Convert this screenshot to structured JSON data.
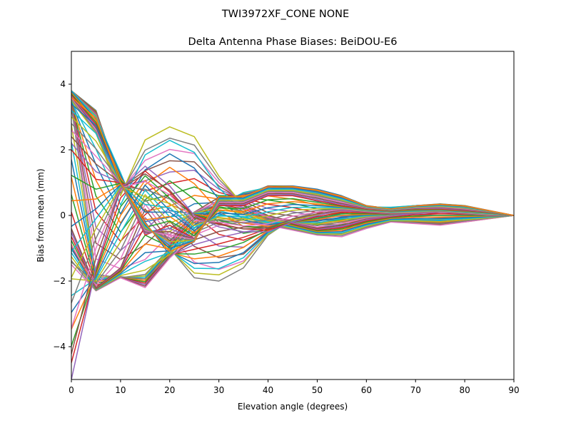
{
  "chart_data": {
    "type": "line",
    "suptitle": "TWI3972XF_CONE  NONE",
    "title": "Delta Antenna Phase Biases: BeiDOU-E6",
    "xlabel": "Elevation angle (degrees)",
    "ylabel": "Bias from mean (mm)",
    "xlim": [
      0,
      90
    ],
    "ylim": [
      -5,
      5
    ],
    "xticks": [
      0,
      10,
      20,
      30,
      40,
      50,
      60,
      70,
      80,
      90
    ],
    "yticks": [
      -4,
      -2,
      0,
      2,
      4
    ],
    "grid": false,
    "legend": "none",
    "x": [
      0,
      5,
      10,
      15,
      20,
      25,
      30,
      35,
      40,
      45,
      50,
      55,
      60,
      65,
      70,
      75,
      80,
      85,
      90
    ],
    "series_count": 72,
    "series_colors": [
      "#1f77b4",
      "#ff7f0e",
      "#2ca02c",
      "#d62728",
      "#9467bd",
      "#8c564b",
      "#e377c2",
      "#7f7f7f",
      "#bcbd22",
      "#17becf"
    ],
    "envelope_series": [
      {
        "values": [
          3.8,
          3.2,
          1.0,
          -0.2,
          -1.2,
          -0.8,
          0.6,
          0.6,
          0.9,
          0.9,
          0.8,
          0.6,
          0.3,
          0.2,
          0.3,
          0.35,
          0.3,
          0.15,
          0.0
        ]
      },
      {
        "values": [
          3.8,
          3.0,
          1.3,
          -0.5,
          -0.4,
          0.1,
          0.3,
          0.7,
          0.85,
          0.75,
          0.55,
          0.45,
          0.25,
          0.25,
          0.3,
          0.3,
          0.25,
          0.1,
          0.0
        ]
      },
      {
        "values": [
          3.5,
          2.5,
          0.6,
          2.3,
          2.7,
          2.4,
          1.2,
          0.3,
          -0.3,
          -0.4,
          -0.5,
          -0.4,
          -0.3,
          -0.1,
          -0.2,
          -0.25,
          -0.2,
          -0.1,
          0.0
        ]
      },
      {
        "values": [
          3.3,
          -1.8,
          -1.9,
          -1.8,
          -1.0,
          -1.9,
          -2.0,
          -1.6,
          -0.6,
          -0.1,
          0.1,
          0.2,
          0.1,
          -0.1,
          -0.1,
          -0.1,
          -0.05,
          0.0,
          0.0
        ]
      },
      {
        "values": [
          -1.5,
          -2.3,
          -1.9,
          -2.2,
          -1.3,
          -0.6,
          -0.3,
          -0.2,
          -0.3,
          -0.45,
          -0.6,
          -0.65,
          -0.4,
          -0.2,
          -0.25,
          -0.3,
          -0.2,
          -0.1,
          0.0
        ]
      },
      {
        "values": [
          -0.4,
          -2.2,
          -1.6,
          0.2,
          -0.8,
          0.1,
          0.55,
          0.3,
          0.0,
          -0.2,
          -0.4,
          -0.3,
          -0.1,
          0.0,
          0.1,
          0.15,
          0.1,
          0.05,
          0.0
        ]
      },
      {
        "values": [
          -5.0,
          -1.6,
          0.8,
          1.5,
          0.9,
          0.0,
          -0.35,
          -0.5,
          -0.5,
          -0.2,
          0.0,
          0.15,
          0.1,
          0.05,
          0.05,
          0.1,
          0.05,
          0.0,
          0.0
        ]
      },
      {
        "values": [
          2.0,
          1.1,
          1.0,
          -0.6,
          -0.3,
          -0.7,
          0.3,
          0.3,
          0.6,
          0.6,
          0.45,
          0.3,
          0.2,
          0.15,
          0.2,
          0.2,
          0.15,
          0.1,
          0.0
        ]
      }
    ]
  }
}
